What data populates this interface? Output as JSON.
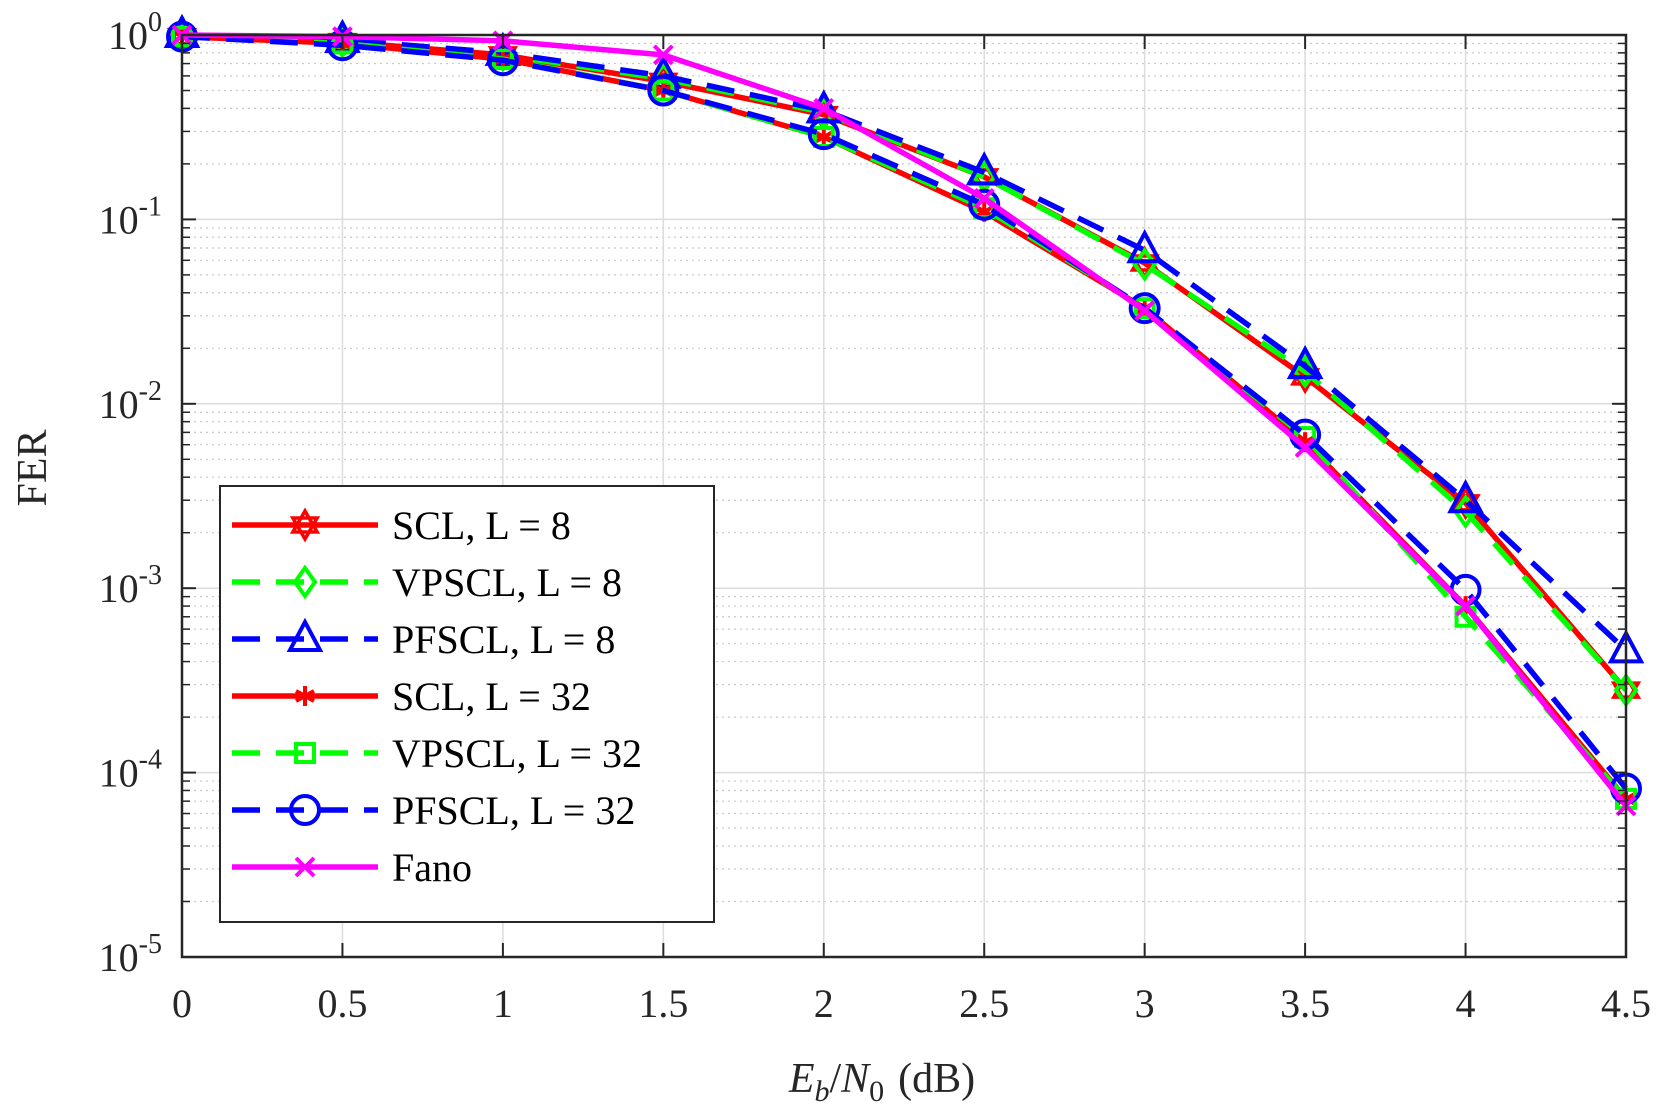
{
  "chart_data": {
    "type": "line",
    "title": "",
    "xlabel": "E_b/N_0 (dB)",
    "xlabel_parts": {
      "e": "E",
      "b": "b",
      "slash": "/",
      "n": "N",
      "zero": "0",
      "unit": "(dB)"
    },
    "ylabel": "FER",
    "yscale": "log",
    "xlim": [
      0,
      4.5
    ],
    "ylim": [
      1e-05,
      1
    ],
    "grid": true,
    "legend_position": "bottom-left",
    "x": [
      0,
      0.5,
      1,
      1.5,
      2,
      2.5,
      3,
      3.5,
      4,
      4.5
    ],
    "x_ticks": [
      "0",
      "0.5",
      "1",
      "1.5",
      "2",
      "2.5",
      "3",
      "3.5",
      "4",
      "4.5"
    ],
    "y_ticks": [
      {
        "value": 1,
        "base": "10",
        "exp": "0"
      },
      {
        "value": 0.1,
        "base": "10",
        "exp": "-1"
      },
      {
        "value": 0.01,
        "base": "10",
        "exp": "-2"
      },
      {
        "value": 0.001,
        "base": "10",
        "exp": "-3"
      },
      {
        "value": 0.0001,
        "base": "10",
        "exp": "-4"
      },
      {
        "value": 1e-05,
        "base": "10",
        "exp": "-5"
      }
    ],
    "series": [
      {
        "name": "SCL, L = 8",
        "color": "#ff0000",
        "dash": "solid",
        "marker": "hexagram",
        "values": [
          0.98,
          0.92,
          0.78,
          0.56,
          0.37,
          0.17,
          0.058,
          0.014,
          0.0029,
          0.00028
        ]
      },
      {
        "name": "VPSCL, L = 8",
        "color": "#00ff00",
        "dash": "dashed",
        "marker": "diamond",
        "values": [
          0.98,
          0.92,
          0.78,
          0.58,
          0.38,
          0.17,
          0.057,
          0.015,
          0.0026,
          0.00028
        ]
      },
      {
        "name": "PFSCL, L = 8",
        "color": "#0000ff",
        "dash": "dashed",
        "marker": "triangle",
        "values": [
          1.0,
          0.94,
          0.8,
          0.6,
          0.39,
          0.18,
          0.068,
          0.016,
          0.003,
          0.00046
        ]
      },
      {
        "name": "SCL, L = 32",
        "color": "#ff0000",
        "dash": "solid",
        "marker": "asterisk",
        "values": [
          0.98,
          0.9,
          0.74,
          0.5,
          0.28,
          0.11,
          0.033,
          0.0062,
          0.0008,
          7.2e-05
        ]
      },
      {
        "name": "VPSCL, L = 32",
        "color": "#00ff00",
        "dash": "dashed",
        "marker": "square",
        "values": [
          0.98,
          0.9,
          0.74,
          0.5,
          0.28,
          0.115,
          0.033,
          0.0066,
          0.0007,
          7.2e-05
        ]
      },
      {
        "name": "PFSCL, L = 32",
        "color": "#0000ff",
        "dash": "dashed",
        "marker": "circle",
        "values": [
          0.98,
          0.88,
          0.73,
          0.5,
          0.29,
          0.12,
          0.033,
          0.0068,
          0.00098,
          8.2e-05
        ]
      },
      {
        "name": "Fano",
        "color": "#ff00ff",
        "dash": "solid",
        "marker": "x",
        "values": [
          1.0,
          0.98,
          0.93,
          0.78,
          0.4,
          0.13,
          0.032,
          0.0058,
          0.0008,
          6.6e-05
        ]
      }
    ]
  }
}
